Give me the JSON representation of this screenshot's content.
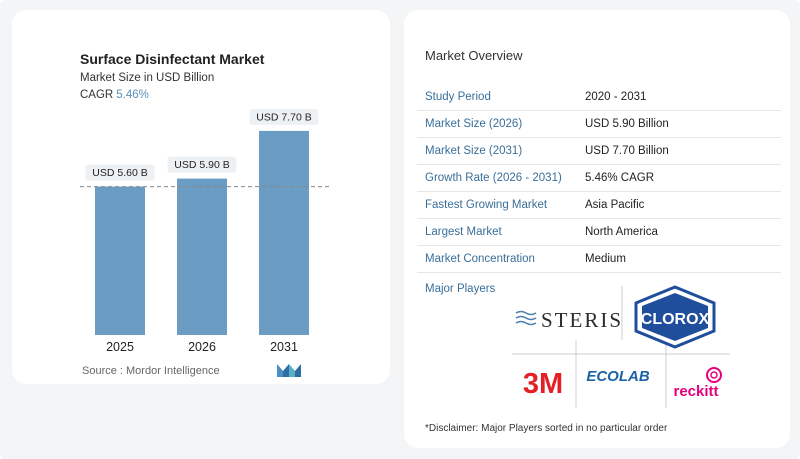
{
  "chart_data": {
    "type": "bar",
    "title": "Surface Disinfectant Market",
    "subtitle": "Market Size in USD Billion",
    "cagr_label": "CAGR",
    "cagr_value": "5.46%",
    "categories": [
      "2025",
      "2026",
      "2031"
    ],
    "values": [
      5.6,
      5.9,
      7.7
    ],
    "data_labels": [
      "USD 5.60 B",
      "USD 5.90 B",
      "USD 7.70 B"
    ],
    "bar_color": "#6a9cc4",
    "reference_line": 5.6,
    "ylim": [
      0,
      8.3
    ]
  },
  "source": "Source : Mordor Intelligence",
  "overview": {
    "title": "Market Overview",
    "rows": [
      {
        "key": "Study Period",
        "value": "2020 - 2031"
      },
      {
        "key": "Market Size (2026)",
        "value": "USD 5.90 Billion"
      },
      {
        "key": "Market Size (2031)",
        "value": "USD 7.70 Billion"
      },
      {
        "key": "Growth Rate (2026 - 2031)",
        "value": "5.46% CAGR"
      },
      {
        "key": "Fastest Growing Market",
        "value": "Asia Pacific"
      },
      {
        "key": "Largest Market",
        "value": "North America"
      },
      {
        "key": "Market Concentration",
        "value": "Medium"
      }
    ]
  },
  "major_players": {
    "label": "Major Players",
    "logos": [
      "STERIS",
      "CLOROX",
      "3M",
      "ECOLAB",
      "reckitt"
    ]
  },
  "disclaimer": "*Disclaimer: Major Players sorted in no particular order",
  "colors": {
    "accent": "#3a6f99",
    "clorox_blue": "#1f4e9c",
    "red": "#e41f26",
    "ecolab_blue": "#1b62a8",
    "reckitt_pink": "#e6007e"
  }
}
